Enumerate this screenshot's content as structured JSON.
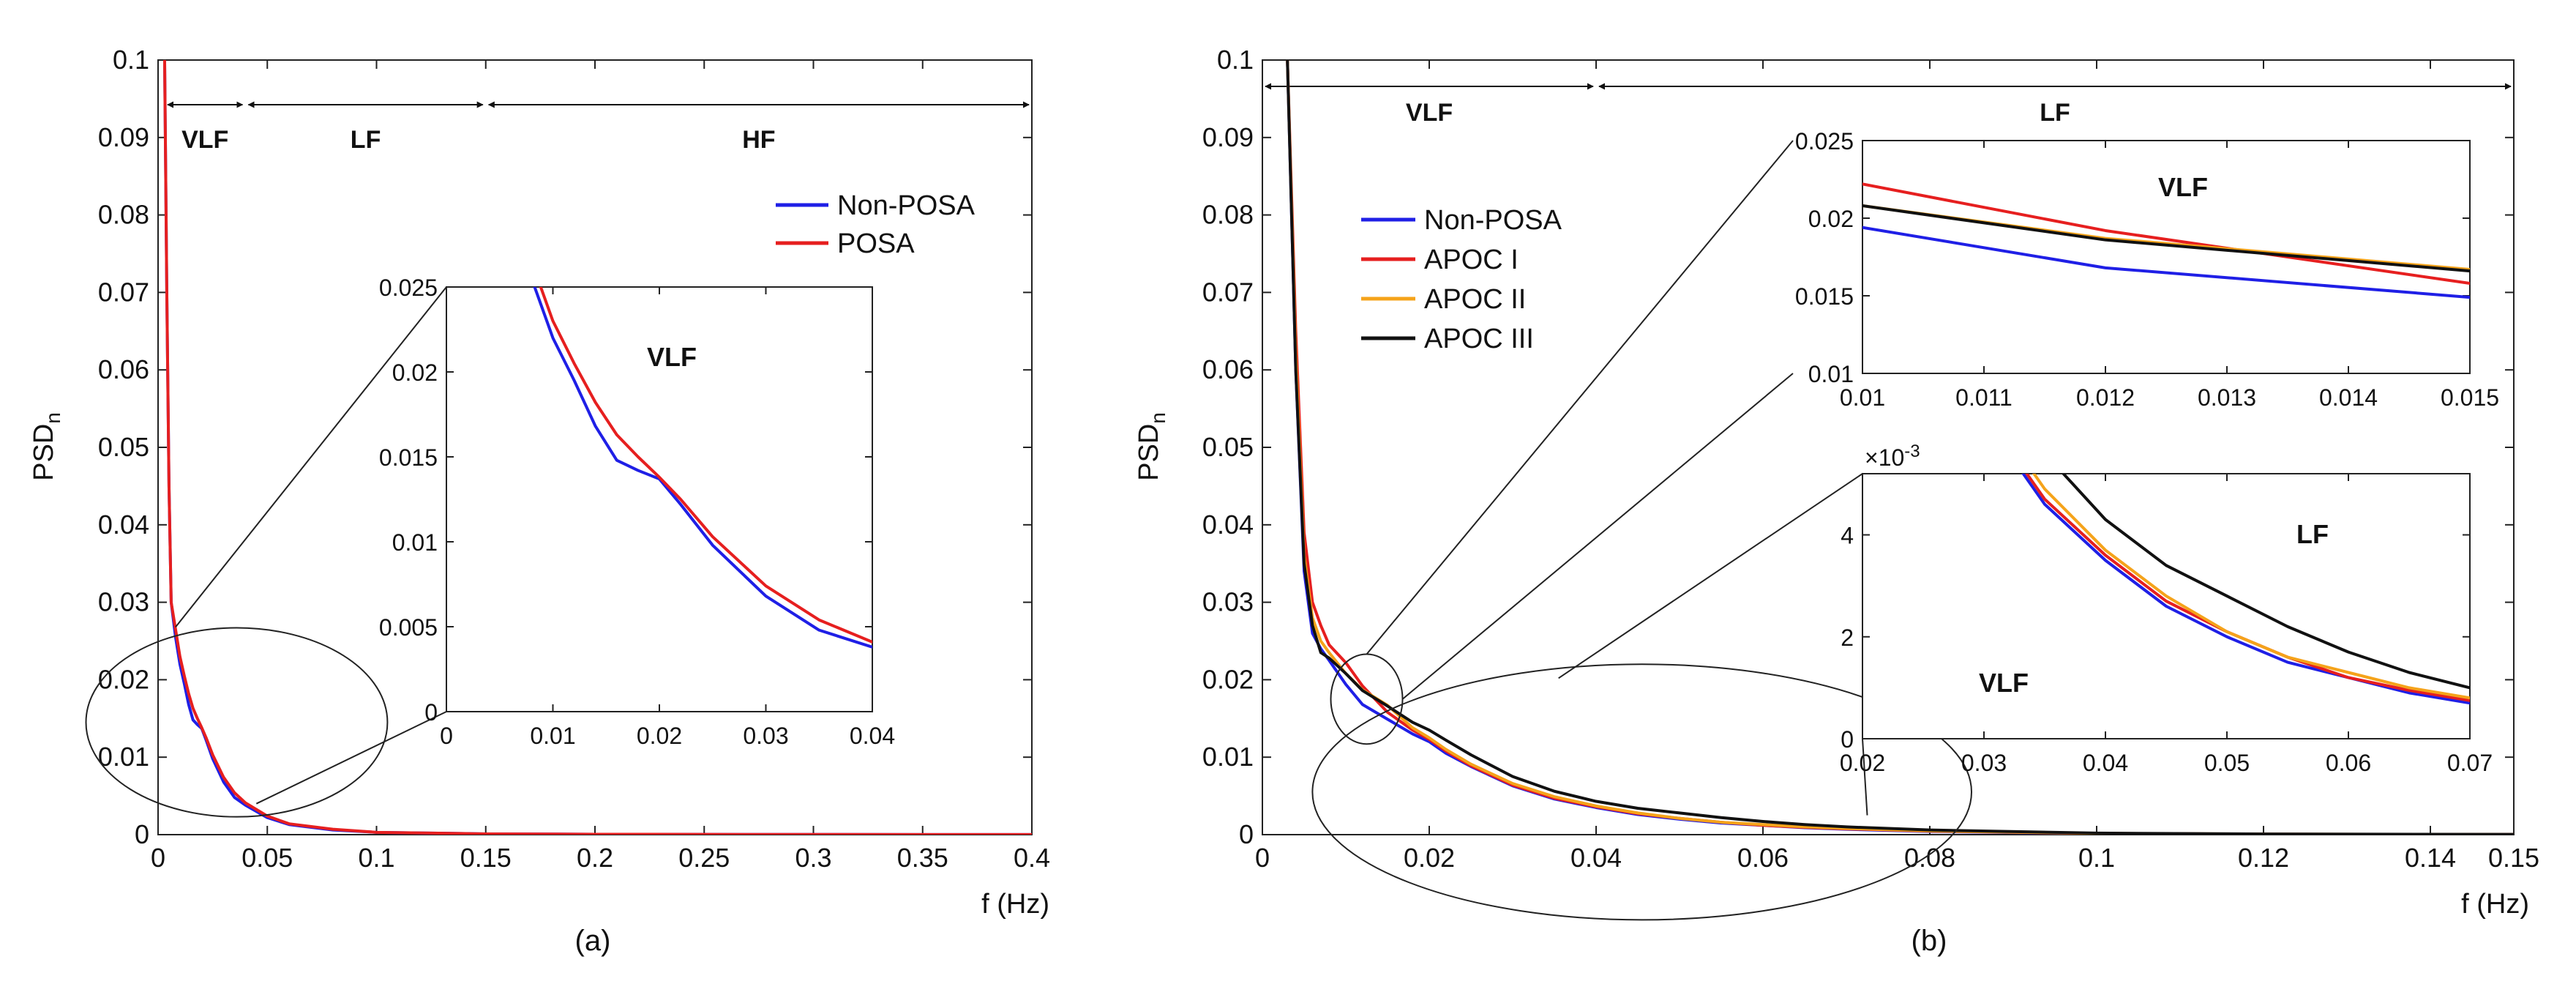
{
  "chart_data": [
    {
      "id": "a",
      "type": "line",
      "caption": "(a)",
      "xlabel": "f (Hz)",
      "ylabel": "PSD",
      "ylabel_sub": "n",
      "xlim": [
        0,
        0.4
      ],
      "ylim": [
        0,
        0.1
      ],
      "xticks": [
        0,
        0.05,
        0.1,
        0.15,
        0.2,
        0.25,
        0.3,
        0.35,
        0.4
      ],
      "xtick_labels": [
        "0",
        "0.05",
        "0.1",
        "0.15",
        "0.2",
        "0.25",
        "0.3",
        "0.35",
        "0.4"
      ],
      "yticks": [
        0,
        0.01,
        0.02,
        0.03,
        0.04,
        0.05,
        0.06,
        0.07,
        0.08,
        0.09,
        0.1
      ],
      "ytick_labels": [
        "0",
        "0.01",
        "0.02",
        "0.03",
        "0.04",
        "0.05",
        "0.06",
        "0.07",
        "0.08",
        "0.09",
        "0.1"
      ],
      "bands": [
        {
          "label": "VLF",
          "from": 0.003,
          "to": 0.04
        },
        {
          "label": "LF",
          "from": 0.04,
          "to": 0.15
        },
        {
          "label": "HF",
          "from": 0.15,
          "to": 0.4
        }
      ],
      "legend": [
        "Non-POSA",
        "POSA"
      ],
      "series": [
        {
          "name": "Non-POSA",
          "color": "#1f1fe6",
          "x": [
            0.003,
            0.004,
            0.005,
            0.006,
            0.008,
            0.01,
            0.012,
            0.014,
            0.016,
            0.018,
            0.02,
            0.022,
            0.025,
            0.03,
            0.035,
            0.04,
            0.05,
            0.06,
            0.08,
            0.1,
            0.15,
            0.2,
            0.3,
            0.4
          ],
          "y": [
            0.1,
            0.07,
            0.045,
            0.03,
            0.0255,
            0.022,
            0.0195,
            0.0168,
            0.0148,
            0.0142,
            0.0137,
            0.0122,
            0.0098,
            0.0068,
            0.0048,
            0.0038,
            0.0022,
            0.0013,
            0.0006,
            0.0003,
            0.0001,
            5e-05,
            2e-05,
            1e-05
          ]
        },
        {
          "name": "POSA",
          "color": "#e61f1f",
          "x": [
            0.003,
            0.004,
            0.005,
            0.006,
            0.008,
            0.01,
            0.012,
            0.014,
            0.016,
            0.018,
            0.02,
            0.022,
            0.025,
            0.03,
            0.035,
            0.04,
            0.05,
            0.06,
            0.08,
            0.1,
            0.15,
            0.2,
            0.3,
            0.4
          ],
          "y": [
            0.1,
            0.07,
            0.045,
            0.03,
            0.0265,
            0.023,
            0.0205,
            0.0182,
            0.0163,
            0.015,
            0.0138,
            0.0125,
            0.0103,
            0.0074,
            0.0054,
            0.0041,
            0.0024,
            0.0014,
            0.0007,
            0.0003,
            0.0001,
            5e-05,
            2e-05,
            1e-05
          ]
        }
      ],
      "zoom_ellipse": {
        "cx": 0.036,
        "cy": 0.0145,
        "rx": 0.069,
        "ry": 0.0122
      },
      "inset": {
        "title": "VLF",
        "xlim": [
          0,
          0.04
        ],
        "ylim": [
          0,
          0.025
        ],
        "xticks": [
          0,
          0.01,
          0.02,
          0.03,
          0.04
        ],
        "xtick_labels": [
          "0",
          "0.01",
          "0.02",
          "0.03",
          "0.04"
        ],
        "yticks": [
          0,
          0.005,
          0.01,
          0.015,
          0.02,
          0.025
        ],
        "ytick_labels": [
          "0",
          "0.005",
          "0.01",
          "0.015",
          "0.02",
          "0.025"
        ]
      }
    },
    {
      "id": "b",
      "type": "line",
      "caption": "(b)",
      "xlabel": "f (Hz)",
      "ylabel": "PSD",
      "ylabel_sub": "n",
      "xlim": [
        0,
        0.15
      ],
      "ylim": [
        0,
        0.1
      ],
      "xticks": [
        0,
        0.02,
        0.04,
        0.06,
        0.08,
        0.1,
        0.12,
        0.14,
        0.15
      ],
      "xtick_labels": [
        "0",
        "0.02",
        "0.04",
        "0.06",
        "0.08",
        "0.1",
        "0.12",
        "0.14",
        "0.15"
      ],
      "yticks": [
        0,
        0.01,
        0.02,
        0.03,
        0.04,
        0.05,
        0.06,
        0.07,
        0.08,
        0.09,
        0.1
      ],
      "ytick_labels": [
        "0",
        "0.01",
        "0.02",
        "0.03",
        "0.04",
        "0.05",
        "0.06",
        "0.07",
        "0.08",
        "0.09",
        "0.1"
      ],
      "bands": [
        {
          "label": "VLF",
          "from": 0.0,
          "to": 0.04
        },
        {
          "label": "LF",
          "from": 0.04,
          "to": 0.15
        }
      ],
      "legend": [
        "Non-POSA",
        "APOC I",
        "APOC II",
        "APOC III"
      ],
      "series": [
        {
          "name": "Non-POSA",
          "color": "#1f1fe6",
          "x": [
            0.003,
            0.004,
            0.005,
            0.006,
            0.007,
            0.008,
            0.01,
            0.012,
            0.015,
            0.018,
            0.02,
            0.022,
            0.025,
            0.03,
            0.035,
            0.04,
            0.045,
            0.05,
            0.055,
            0.06,
            0.065,
            0.07,
            0.08,
            0.1,
            0.12,
            0.15
          ],
          "y": [
            0.1,
            0.06,
            0.034,
            0.026,
            0.024,
            0.0225,
            0.0194,
            0.0168,
            0.0149,
            0.013,
            0.012,
            0.0105,
            0.0088,
            0.0063,
            0.0046,
            0.0035,
            0.0026,
            0.002,
            0.0015,
            0.0012,
            0.0009,
            0.0007,
            0.0004,
            0.00015,
            6e-05,
            2e-05
          ]
        },
        {
          "name": "APOC I",
          "color": "#e61f1f",
          "x": [
            0.003,
            0.004,
            0.005,
            0.006,
            0.007,
            0.008,
            0.01,
            0.012,
            0.015,
            0.018,
            0.02,
            0.022,
            0.025,
            0.03,
            0.035,
            0.04,
            0.045,
            0.05,
            0.055,
            0.06,
            0.065,
            0.07,
            0.08,
            0.1,
            0.12,
            0.15
          ],
          "y": [
            0.1,
            0.065,
            0.039,
            0.03,
            0.027,
            0.0245,
            0.0222,
            0.0192,
            0.0158,
            0.0135,
            0.0123,
            0.0108,
            0.0089,
            0.0064,
            0.0047,
            0.0036,
            0.0027,
            0.0021,
            0.0016,
            0.0012,
            0.00095,
            0.00075,
            0.00045,
            0.00016,
            6e-05,
            2e-05
          ]
        },
        {
          "name": "APOC II",
          "color": "#f5a31a",
          "x": [
            0.003,
            0.004,
            0.005,
            0.006,
            0.007,
            0.008,
            0.01,
            0.012,
            0.015,
            0.018,
            0.02,
            0.022,
            0.025,
            0.03,
            0.035,
            0.04,
            0.045,
            0.05,
            0.055,
            0.06,
            0.065,
            0.07,
            0.08,
            0.1,
            0.12,
            0.15
          ],
          "y": [
            0.1,
            0.062,
            0.036,
            0.028,
            0.025,
            0.0235,
            0.0208,
            0.0187,
            0.0167,
            0.0138,
            0.0125,
            0.011,
            0.0091,
            0.0066,
            0.0049,
            0.0037,
            0.0028,
            0.0021,
            0.0016,
            0.0013,
            0.001,
            0.0008,
            0.00047,
            0.00017,
            7e-05,
            2e-05
          ]
        },
        {
          "name": "APOC III",
          "color": "#111111",
          "x": [
            0.003,
            0.004,
            0.005,
            0.006,
            0.007,
            0.008,
            0.01,
            0.012,
            0.015,
            0.018,
            0.02,
            0.022,
            0.025,
            0.03,
            0.035,
            0.04,
            0.045,
            0.05,
            0.055,
            0.06,
            0.065,
            0.07,
            0.08,
            0.1,
            0.12,
            0.15
          ],
          "y": [
            0.1,
            0.06,
            0.035,
            0.027,
            0.0235,
            0.0228,
            0.0208,
            0.0186,
            0.0166,
            0.0145,
            0.0135,
            0.0122,
            0.0103,
            0.0075,
            0.0056,
            0.0043,
            0.0034,
            0.0028,
            0.0022,
            0.0017,
            0.0013,
            0.001,
            0.0006,
            0.0002,
            8e-05,
            3e-05
          ]
        }
      ],
      "zoom_ellipses": [
        {
          "cx": 0.0125,
          "cy": 0.0175,
          "rx": 0.0043,
          "ry": 0.0058
        },
        {
          "cx": 0.0455,
          "cy": 0.0055,
          "rx": 0.0395,
          "ry": 0.0165
        }
      ],
      "insets": [
        {
          "title": "VLF",
          "xlim": [
            0.01,
            0.015
          ],
          "ylim": [
            0.01,
            0.025
          ],
          "xticks": [
            0.01,
            0.011,
            0.012,
            0.013,
            0.014,
            0.015
          ],
          "xtick_labels": [
            "0.01",
            "0.011",
            "0.012",
            "0.013",
            "0.014",
            "0.015"
          ],
          "yticks": [
            0.01,
            0.015,
            0.02,
            0.025
          ],
          "ytick_labels": [
            "0.01",
            "0.015",
            "0.02",
            "0.025"
          ]
        },
        {
          "title_right": "LF",
          "title_left": "VLF",
          "scale_label": "×10",
          "scale_exp": "-3",
          "xlim": [
            0.02,
            0.07
          ],
          "ylim": [
            0,
            0.0052
          ],
          "xticks": [
            0.02,
            0.03,
            0.04,
            0.05,
            0.06,
            0.07
          ],
          "xtick_labels": [
            "0.02",
            "0.03",
            "0.04",
            "0.05",
            "0.06",
            "0.07"
          ],
          "yticks": [
            0,
            0.002,
            0.004
          ],
          "ytick_labels": [
            "0",
            "2",
            "4"
          ]
        }
      ]
    }
  ]
}
